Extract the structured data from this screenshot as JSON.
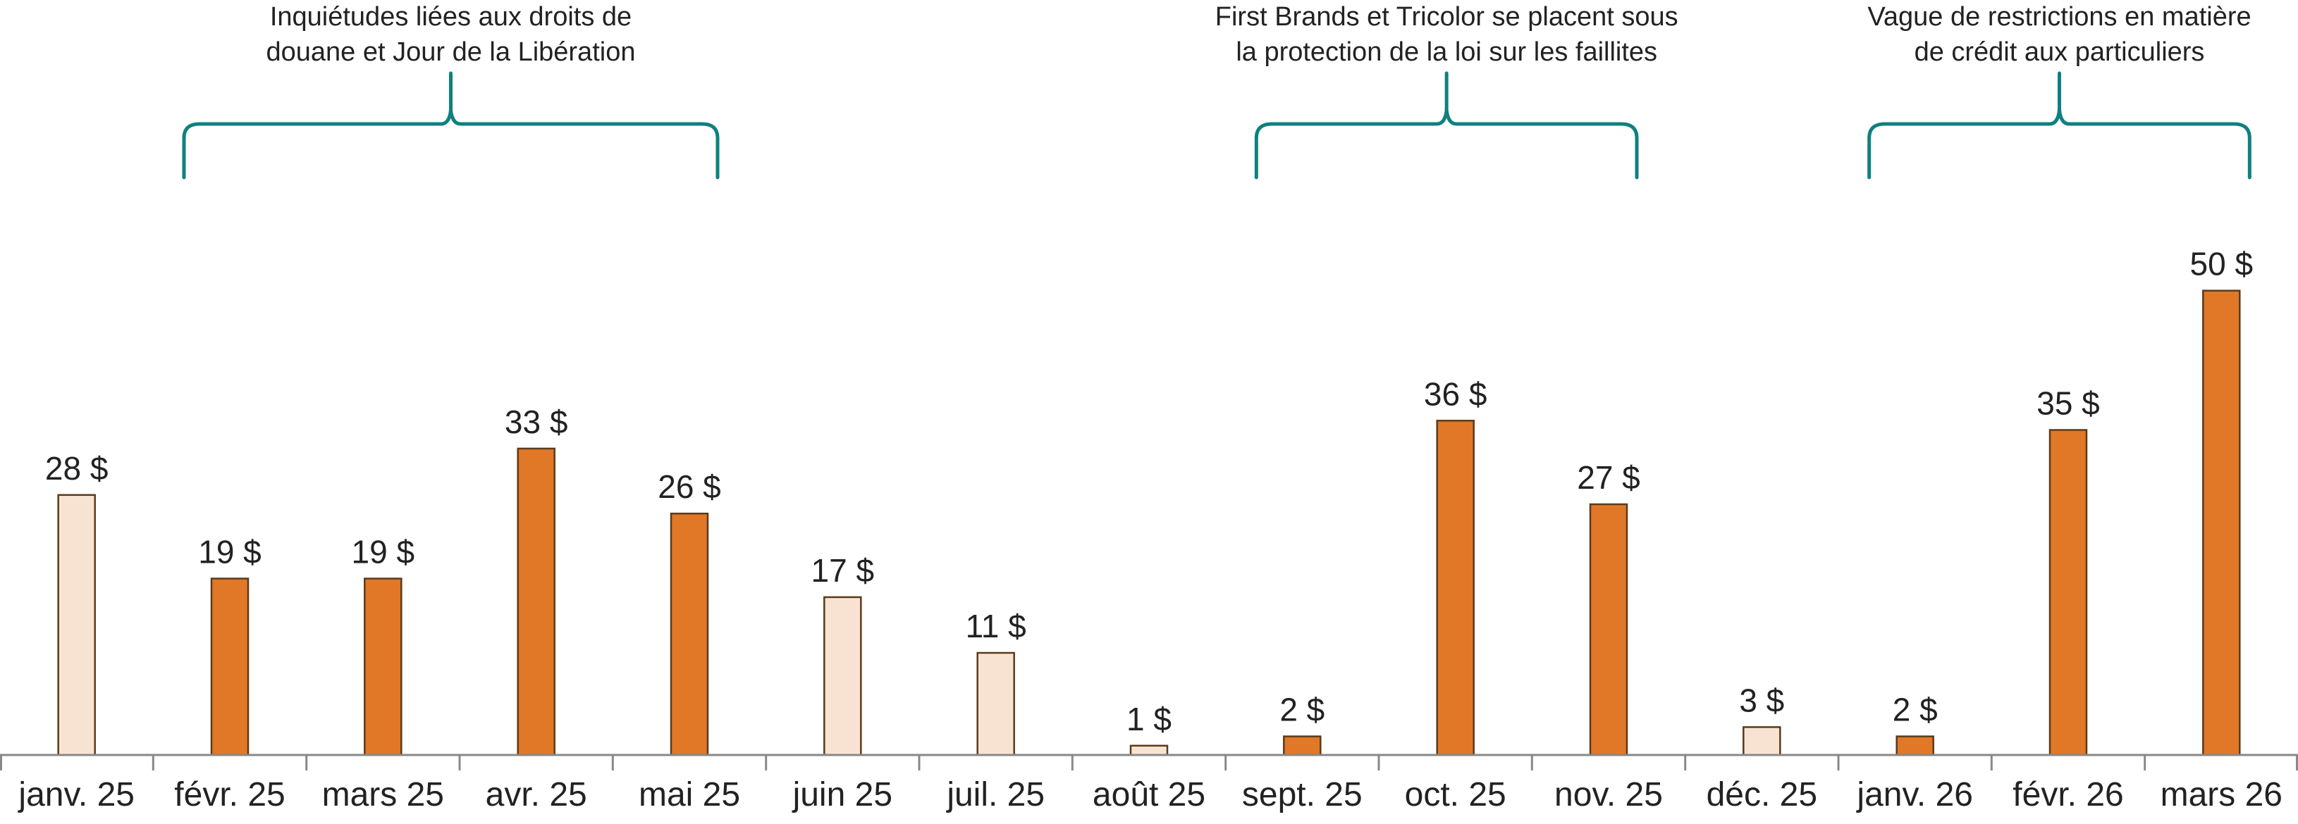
{
  "chart_data": {
    "type": "bar",
    "categories": [
      "janv. 25",
      "févr. 25",
      "mars 25",
      "avr. 25",
      "mai 25",
      "juin 25",
      "juil. 25",
      "août 25",
      "sept. 25",
      "oct. 25",
      "nov. 25",
      "déc. 25",
      "janv. 26",
      "févr. 26",
      "mars 26"
    ],
    "values": [
      28,
      19,
      19,
      33,
      26,
      17,
      11,
      1,
      2,
      36,
      27,
      3,
      2,
      35,
      50
    ],
    "value_labels": [
      "28 $",
      "19 $",
      "19 $",
      "33 $",
      "26 $",
      "17 $",
      "11 $",
      "1 $",
      "2 $",
      "36 $",
      "27 $",
      "3 $",
      "2 $",
      "35 $",
      "50 $"
    ],
    "highlighted": [
      false,
      true,
      true,
      true,
      true,
      false,
      false,
      false,
      true,
      true,
      true,
      false,
      true,
      true,
      true
    ],
    "ylim": [
      0,
      54
    ],
    "grid": false,
    "legend": "none",
    "colors": {
      "highlight_fill": "#E07828",
      "muted_fill": "#F8E3D3",
      "bar_stroke": "#5A3A1A",
      "axis": "#888888",
      "annotation_bracket": "#0F8080"
    },
    "annotations": [
      {
        "lines": [
          "Inquiétudes liées aux droits de",
          "douane et Jour de la Libération"
        ],
        "from_index": 1,
        "to_index": 4
      },
      {
        "lines": [
          "First Brands et Tricolor se placent sous",
          "la protection de la loi sur les faillites"
        ],
        "from_index": 8,
        "to_index": 10
      },
      {
        "lines": [
          "Vague de restrictions en matière",
          "de crédit aux particuliers"
        ],
        "from_index": 12,
        "to_index": 14
      }
    ]
  }
}
